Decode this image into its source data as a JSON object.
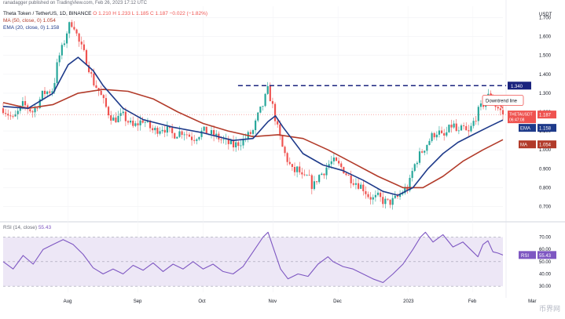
{
  "header": {
    "author_line": "ranadagger published on TradingView.com, Feb 26, 2023 17:12 UTC",
    "symbol": "Theta Token / TetherUS, 1D, BINANCE",
    "ohlc": "O 1.210  H 1.233  L 1.185  C 1.187  −0.022 (−1.82%)",
    "ma_label": "MA (50, close, 0)",
    "ma_value": "1.054",
    "ema_label": "EMA (20, close, 0)",
    "ema_value": "1.158",
    "rsi_label": "RSI (14, close)",
    "rsi_value": "55.43"
  },
  "colors": {
    "up": "#26a69a",
    "down": "#ef5350",
    "ema": "#1e3a8a",
    "ma": "#b23b2a",
    "rsi": "#7e57c2",
    "resistance": "#1a237e",
    "rsi_band": "#ede7f6"
  },
  "chart_data": [
    {
      "type": "candlestick",
      "currency_label": "USDT",
      "price_ticks": [
        "1.700",
        "1.600",
        "1.500",
        "1.400",
        "1.300",
        "1.200",
        "1.100",
        "1.000",
        "0.900",
        "0.800",
        "0.700"
      ],
      "ylim": [
        0.64,
        1.76
      ],
      "x_ticks": [
        {
          "label": "Aug",
          "t": 0.13
        },
        {
          "label": "Sep",
          "t": 0.27
        },
        {
          "label": "Oct",
          "t": 0.4
        },
        {
          "label": "Nov",
          "t": 0.54
        },
        {
          "label": "Dec",
          "t": 0.67
        },
        {
          "label": "2023",
          "t": 0.81
        },
        {
          "label": "Feb",
          "t": 0.94
        },
        {
          "label": "Mar",
          "t": 1.06
        }
      ],
      "price_path": [
        [
          0.0,
          1.22
        ],
        [
          0.02,
          1.16
        ],
        [
          0.04,
          1.24
        ],
        [
          0.06,
          1.2
        ],
        [
          0.08,
          1.3
        ],
        [
          0.1,
          1.32
        ],
        [
          0.11,
          1.48
        ],
        [
          0.12,
          1.55
        ],
        [
          0.13,
          1.65
        ],
        [
          0.14,
          1.68
        ],
        [
          0.15,
          1.58
        ],
        [
          0.16,
          1.52
        ],
        [
          0.17,
          1.45
        ],
        [
          0.18,
          1.36
        ],
        [
          0.19,
          1.32
        ],
        [
          0.2,
          1.26
        ],
        [
          0.21,
          1.2
        ],
        [
          0.22,
          1.16
        ],
        [
          0.24,
          1.18
        ],
        [
          0.26,
          1.12
        ],
        [
          0.28,
          1.16
        ],
        [
          0.3,
          1.1
        ],
        [
          0.32,
          1.12
        ],
        [
          0.34,
          1.08
        ],
        [
          0.36,
          1.1
        ],
        [
          0.38,
          1.06
        ],
        [
          0.4,
          1.1
        ],
        [
          0.42,
          1.08
        ],
        [
          0.44,
          1.05
        ],
        [
          0.46,
          1.02
        ],
        [
          0.48,
          1.05
        ],
        [
          0.5,
          1.1
        ],
        [
          0.51,
          1.18
        ],
        [
          0.52,
          1.24
        ],
        [
          0.525,
          1.28
        ],
        [
          0.53,
          1.32
        ],
        [
          0.54,
          1.22
        ],
        [
          0.55,
          1.1
        ],
        [
          0.56,
          1.0
        ],
        [
          0.57,
          0.94
        ],
        [
          0.58,
          0.88
        ],
        [
          0.59,
          0.9
        ],
        [
          0.6,
          0.84
        ],
        [
          0.61,
          0.86
        ],
        [
          0.62,
          0.8
        ],
        [
          0.63,
          0.86
        ],
        [
          0.64,
          0.88
        ],
        [
          0.65,
          0.92
        ],
        [
          0.66,
          0.94
        ],
        [
          0.67,
          0.92
        ],
        [
          0.68,
          0.9
        ],
        [
          0.69,
          0.86
        ],
        [
          0.7,
          0.84
        ],
        [
          0.71,
          0.82
        ],
        [
          0.72,
          0.8
        ],
        [
          0.73,
          0.76
        ],
        [
          0.74,
          0.74
        ],
        [
          0.75,
          0.75
        ],
        [
          0.76,
          0.73
        ],
        [
          0.77,
          0.72
        ],
        [
          0.78,
          0.73
        ],
        [
          0.79,
          0.75
        ],
        [
          0.8,
          0.78
        ],
        [
          0.81,
          0.8
        ],
        [
          0.815,
          0.84
        ],
        [
          0.82,
          0.9
        ],
        [
          0.83,
          0.96
        ],
        [
          0.84,
          1.0
        ],
        [
          0.85,
          1.04
        ],
        [
          0.86,
          1.08
        ],
        [
          0.87,
          1.1
        ],
        [
          0.88,
          1.06
        ],
        [
          0.89,
          1.1
        ],
        [
          0.9,
          1.14
        ],
        [
          0.91,
          1.08
        ],
        [
          0.92,
          1.12
        ],
        [
          0.93,
          1.08
        ],
        [
          0.94,
          1.14
        ],
        [
          0.95,
          1.2
        ],
        [
          0.96,
          1.24
        ],
        [
          0.97,
          1.28
        ],
        [
          0.975,
          1.3
        ],
        [
          0.98,
          1.25
        ],
        [
          0.99,
          1.22
        ],
        [
          1.0,
          1.19
        ]
      ],
      "ema": [
        [
          0.0,
          1.23
        ],
        [
          0.05,
          1.22
        ],
        [
          0.1,
          1.3
        ],
        [
          0.13,
          1.45
        ],
        [
          0.15,
          1.49
        ],
        [
          0.18,
          1.42
        ],
        [
          0.2,
          1.34
        ],
        [
          0.24,
          1.22
        ],
        [
          0.28,
          1.16
        ],
        [
          0.34,
          1.12
        ],
        [
          0.4,
          1.09
        ],
        [
          0.46,
          1.05
        ],
        [
          0.5,
          1.06
        ],
        [
          0.53,
          1.15
        ],
        [
          0.545,
          1.18
        ],
        [
          0.56,
          1.12
        ],
        [
          0.6,
          0.98
        ],
        [
          0.64,
          0.92
        ],
        [
          0.68,
          0.89
        ],
        [
          0.72,
          0.84
        ],
        [
          0.76,
          0.78
        ],
        [
          0.79,
          0.76
        ],
        [
          0.82,
          0.8
        ],
        [
          0.85,
          0.9
        ],
        [
          0.88,
          0.98
        ],
        [
          0.91,
          1.04
        ],
        [
          0.94,
          1.08
        ],
        [
          0.97,
          1.12
        ],
        [
          1.0,
          1.158
        ]
      ],
      "ma": [
        [
          0.0,
          1.25
        ],
        [
          0.05,
          1.22
        ],
        [
          0.1,
          1.24
        ],
        [
          0.15,
          1.3
        ],
        [
          0.2,
          1.32
        ],
        [
          0.25,
          1.31
        ],
        [
          0.3,
          1.27
        ],
        [
          0.35,
          1.2
        ],
        [
          0.4,
          1.14
        ],
        [
          0.45,
          1.1
        ],
        [
          0.5,
          1.07
        ],
        [
          0.55,
          1.08
        ],
        [
          0.6,
          1.06
        ],
        [
          0.65,
          1.0
        ],
        [
          0.7,
          0.93
        ],
        [
          0.75,
          0.86
        ],
        [
          0.8,
          0.8
        ],
        [
          0.84,
          0.8
        ],
        [
          0.88,
          0.86
        ],
        [
          0.92,
          0.94
        ],
        [
          0.96,
          1.0
        ],
        [
          1.0,
          1.054
        ]
      ],
      "resistance": {
        "label": "1.340",
        "value": 1.34,
        "t_start": 0.47
      },
      "downtrend_label": "Downtrend line",
      "last_price": {
        "symbol": "THETAUSDT",
        "value": "1.187",
        "countdown": "06:47:08"
      },
      "ema_tag": {
        "name": "EMA",
        "value": "1.158"
      },
      "ma_tag": {
        "name": "MA",
        "value": "1.054"
      }
    },
    {
      "type": "line",
      "name": "RSI (14, close)",
      "ticks": [
        "70.00",
        "60.00",
        "50.00",
        "40.00",
        "30.00"
      ],
      "ylim": [
        25,
        78
      ],
      "band": [
        30,
        70
      ],
      "current": {
        "name": "RSI",
        "value": "55.43"
      },
      "values": [
        [
          0.0,
          50
        ],
        [
          0.02,
          44
        ],
        [
          0.04,
          55
        ],
        [
          0.06,
          48
        ],
        [
          0.08,
          60
        ],
        [
          0.1,
          64
        ],
        [
          0.12,
          68
        ],
        [
          0.14,
          64
        ],
        [
          0.16,
          56
        ],
        [
          0.18,
          45
        ],
        [
          0.2,
          40
        ],
        [
          0.22,
          44
        ],
        [
          0.24,
          40
        ],
        [
          0.26,
          47
        ],
        [
          0.28,
          43
        ],
        [
          0.3,
          49
        ],
        [
          0.32,
          42
        ],
        [
          0.34,
          48
        ],
        [
          0.36,
          44
        ],
        [
          0.38,
          50
        ],
        [
          0.4,
          44
        ],
        [
          0.42,
          48
        ],
        [
          0.44,
          42
        ],
        [
          0.46,
          40
        ],
        [
          0.48,
          46
        ],
        [
          0.5,
          58
        ],
        [
          0.52,
          70
        ],
        [
          0.53,
          74
        ],
        [
          0.54,
          62
        ],
        [
          0.555,
          44
        ],
        [
          0.57,
          36
        ],
        [
          0.59,
          40
        ],
        [
          0.61,
          38
        ],
        [
          0.63,
          48
        ],
        [
          0.65,
          54
        ],
        [
          0.66,
          50
        ],
        [
          0.68,
          46
        ],
        [
          0.7,
          44
        ],
        [
          0.72,
          40
        ],
        [
          0.74,
          36
        ],
        [
          0.76,
          33
        ],
        [
          0.78,
          40
        ],
        [
          0.8,
          48
        ],
        [
          0.82,
          60
        ],
        [
          0.835,
          70
        ],
        [
          0.845,
          74
        ],
        [
          0.86,
          66
        ],
        [
          0.88,
          72
        ],
        [
          0.9,
          62
        ],
        [
          0.92,
          66
        ],
        [
          0.94,
          58
        ],
        [
          0.95,
          54
        ],
        [
          0.96,
          64
        ],
        [
          0.97,
          67
        ],
        [
          0.98,
          58
        ],
        [
          0.99,
          57
        ],
        [
          1.0,
          55.4
        ]
      ]
    }
  ],
  "watermark": "币界网"
}
